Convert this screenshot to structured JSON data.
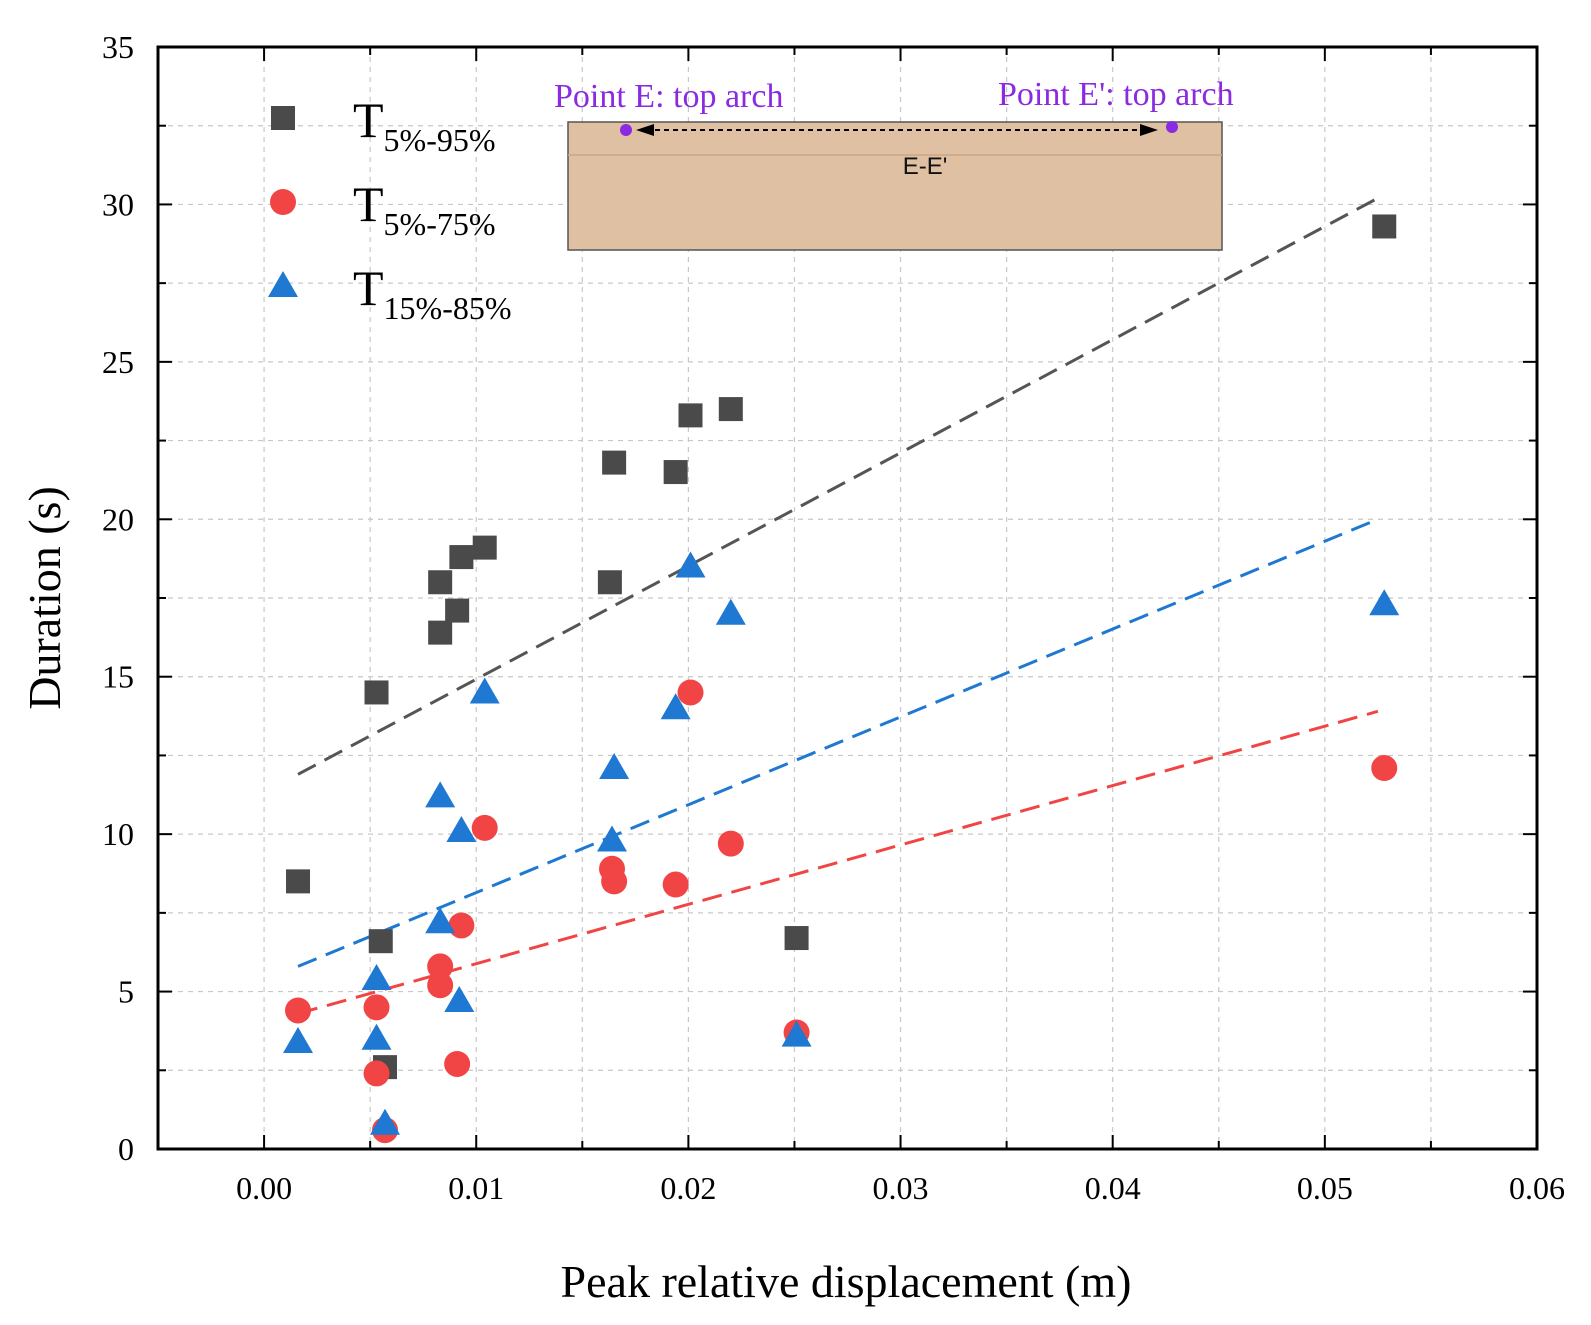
{
  "chart_data": {
    "type": "scatter",
    "title": "",
    "xlabel": "Peak relative displacement (m)",
    "ylabel": "Duration (s)",
    "xlim": [
      -0.005,
      0.06
    ],
    "ylim": [
      0,
      35
    ],
    "x_ticks": [
      "0.00",
      "0.01",
      "0.02",
      "0.03",
      "0.04",
      "0.05",
      "0.06"
    ],
    "x_tick_values": [
      0,
      0.01,
      0.02,
      0.03,
      0.04,
      0.05,
      0.06
    ],
    "y_ticks": [
      "0",
      "5",
      "10",
      "15",
      "20",
      "25",
      "30",
      "35"
    ],
    "y_tick_values": [
      0,
      5,
      10,
      15,
      20,
      25,
      30,
      35
    ],
    "grid": true,
    "legend_position": "top-left",
    "series": [
      {
        "name": "T5%-95%",
        "label_main": "T",
        "label_sub": "5%-95%",
        "marker": "square",
        "color": "#4a4a4a",
        "x": [
          0.0016,
          0.0053,
          0.0055,
          0.0057,
          0.0083,
          0.0083,
          0.0091,
          0.0093,
          0.0104,
          0.0163,
          0.0165,
          0.0194,
          0.0201,
          0.022,
          0.0251,
          0.0528
        ],
        "y": [
          8.5,
          14.5,
          6.6,
          2.6,
          18.0,
          16.4,
          17.1,
          18.8,
          19.1,
          18.0,
          21.8,
          21.5,
          23.3,
          23.5,
          6.7,
          29.3
        ],
        "fit": {
          "x": [
            0.0016,
            0.0525
          ],
          "y": [
            11.9,
            30.2
          ]
        }
      },
      {
        "name": "T5%-75%",
        "label_main": "T",
        "label_sub": "5%-75%",
        "marker": "circle",
        "color": "#f14545",
        "x": [
          0.0016,
          0.0053,
          0.0053,
          0.0057,
          0.0083,
          0.0083,
          0.0091,
          0.0093,
          0.0104,
          0.0164,
          0.0165,
          0.0194,
          0.0201,
          0.022,
          0.0251,
          0.0528
        ],
        "y": [
          4.4,
          4.5,
          2.4,
          0.6,
          5.8,
          5.2,
          2.7,
          7.1,
          10.2,
          8.9,
          8.5,
          8.4,
          14.5,
          9.7,
          3.7,
          12.1
        ],
        "fit": {
          "x": [
            0.0016,
            0.0525
          ],
          "y": [
            4.3,
            13.9
          ]
        }
      },
      {
        "name": "T15%-85%",
        "label_main": "T",
        "label_sub": "15%-85%",
        "marker": "triangle",
        "color": "#1f78d1",
        "x": [
          0.0016,
          0.0053,
          0.0053,
          0.0057,
          0.0083,
          0.0083,
          0.0092,
          0.0093,
          0.0104,
          0.0164,
          0.0165,
          0.0194,
          0.0201,
          0.022,
          0.0251,
          0.0528
        ],
        "y": [
          3.4,
          5.4,
          3.5,
          0.8,
          11.2,
          7.2,
          4.7,
          10.1,
          14.5,
          9.8,
          12.1,
          14.0,
          18.5,
          17.0,
          3.6,
          17.3
        ],
        "fit": {
          "x": [
            0.0016,
            0.0525
          ],
          "y": [
            5.8,
            20.0
          ]
        }
      }
    ],
    "inset": {
      "left_label": "Point E: top arch",
      "right_label": "Point E': top arch",
      "section_label": "E-E'",
      "point_color": "#8a2be2",
      "fill_color": "#dfc0a2"
    }
  }
}
